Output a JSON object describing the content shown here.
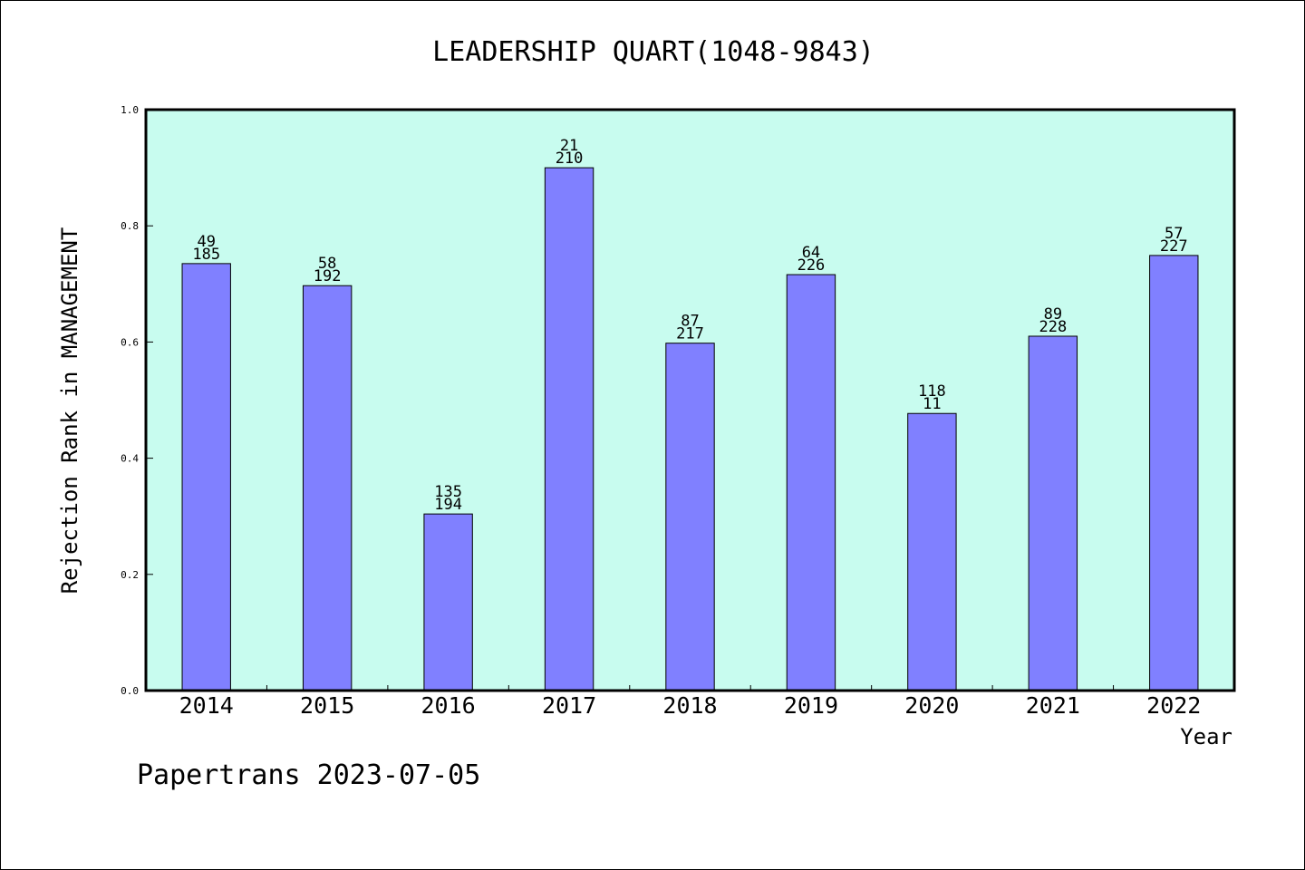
{
  "chart_data": {
    "type": "bar",
    "title": "LEADERSHIP QUART(1048-9843)",
    "xlabel": "Year",
    "ylabel": "Rejection Rank in MANAGEMENT",
    "ylim": [
      0,
      1.0
    ],
    "yticks": [
      "0.0",
      "0.2",
      "0.4",
      "0.6",
      "0.8",
      "1.0"
    ],
    "grid": false,
    "legend": "none",
    "categories": [
      "2014",
      "2015",
      "2016",
      "2017",
      "2018",
      "2019",
      "2020",
      "2021",
      "2022"
    ],
    "values": [
      0.735,
      0.697,
      0.304,
      0.9,
      0.598,
      0.716,
      0.477,
      0.61,
      0.749
    ],
    "labels_top": [
      "49",
      "58",
      "135",
      "21",
      "87",
      "64",
      "118",
      "89",
      "57"
    ],
    "labels_bottom": [
      "185",
      "192",
      "194",
      "210",
      "217",
      "226",
      "11",
      "228",
      "227"
    ],
    "colors": {
      "bar": "#8080ff",
      "plot_background": "#c8fcef",
      "axis": "#000000"
    }
  },
  "footer": {
    "note": "Papertrans 2023-07-05"
  }
}
